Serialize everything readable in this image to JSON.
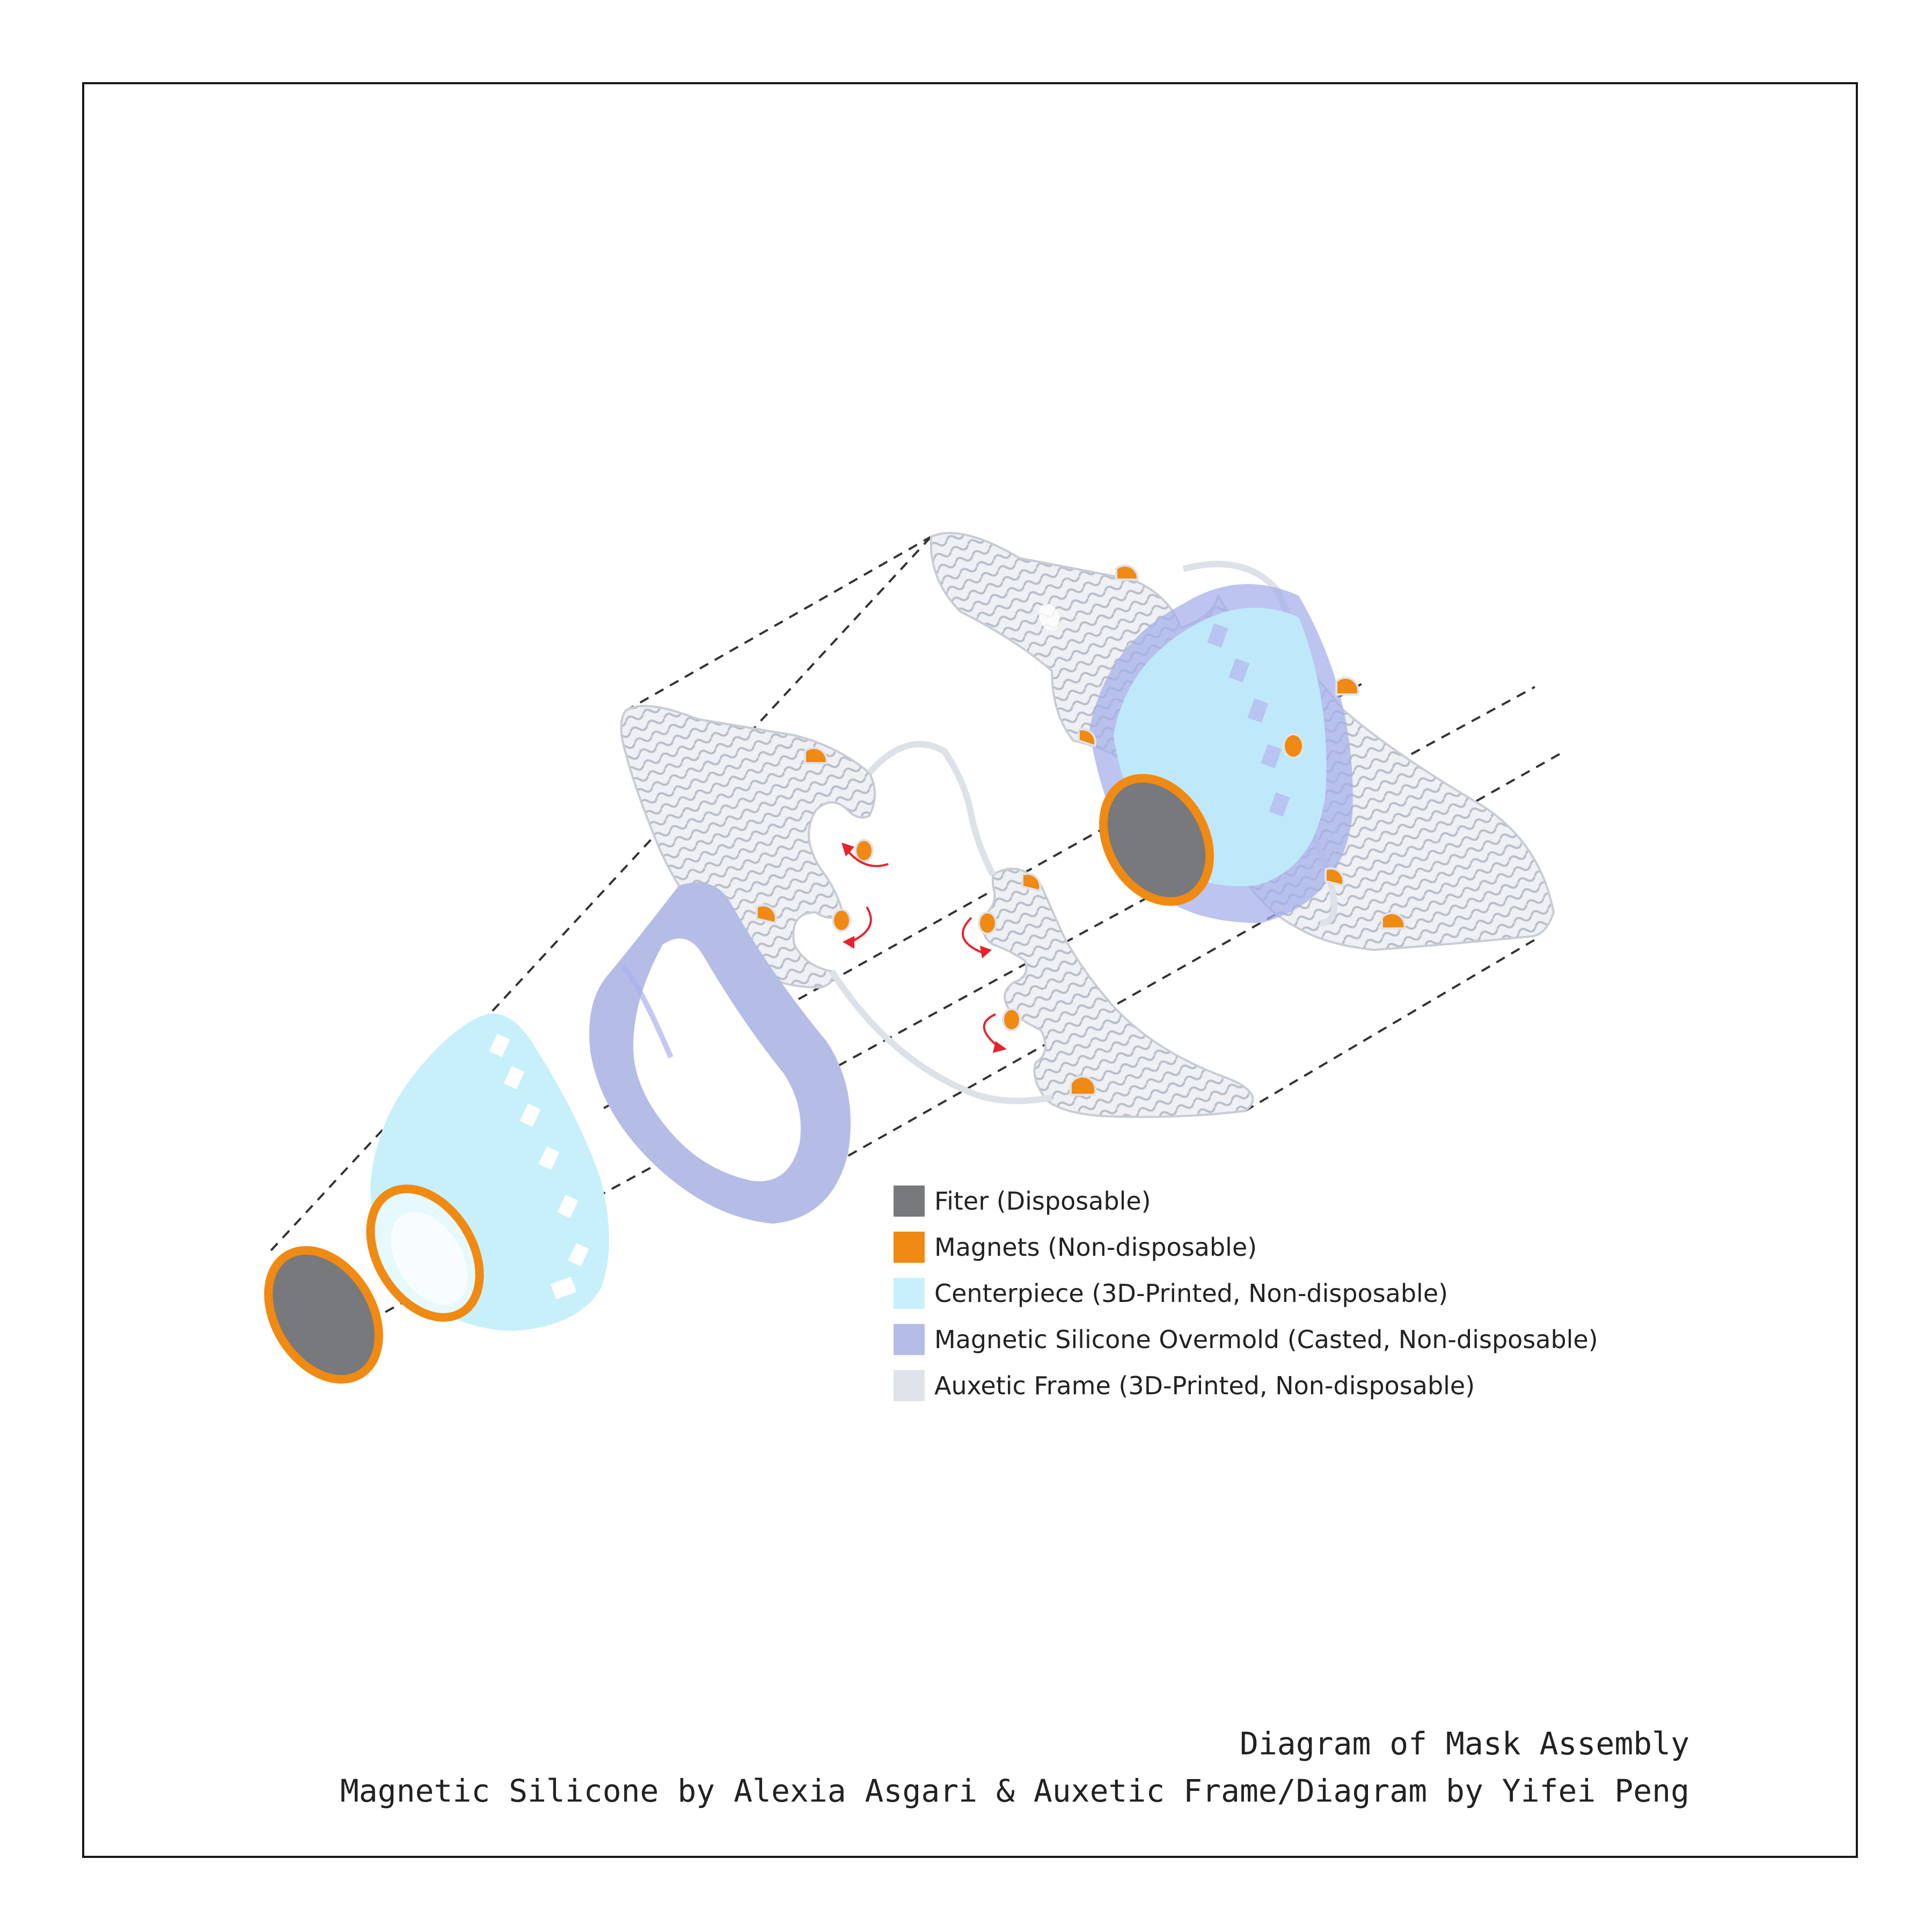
{
  "legend": {
    "items": [
      {
        "label": "Fiter (Disposable)",
        "color": "#77797d"
      },
      {
        "label": "Magnets (Non-disposable)",
        "color": "#f08a12"
      },
      {
        "label": "Centerpiece (3D-Printed, Non-disposable)",
        "color": "#c8f0fb"
      },
      {
        "label": "Magnetic Silicone Overmold (Casted, Non-disposable)",
        "color": "#b5bde6"
      },
      {
        "label": "Auxetic Frame (3D-Printed, Non-disposable)",
        "color": "#dfe3ea"
      }
    ]
  },
  "caption": {
    "title": "Diagram of Mask Assembly",
    "credits": "Magnetic Silicone by Alexia Asgari & Auxetic Frame/Diagram by Yifei Peng"
  }
}
